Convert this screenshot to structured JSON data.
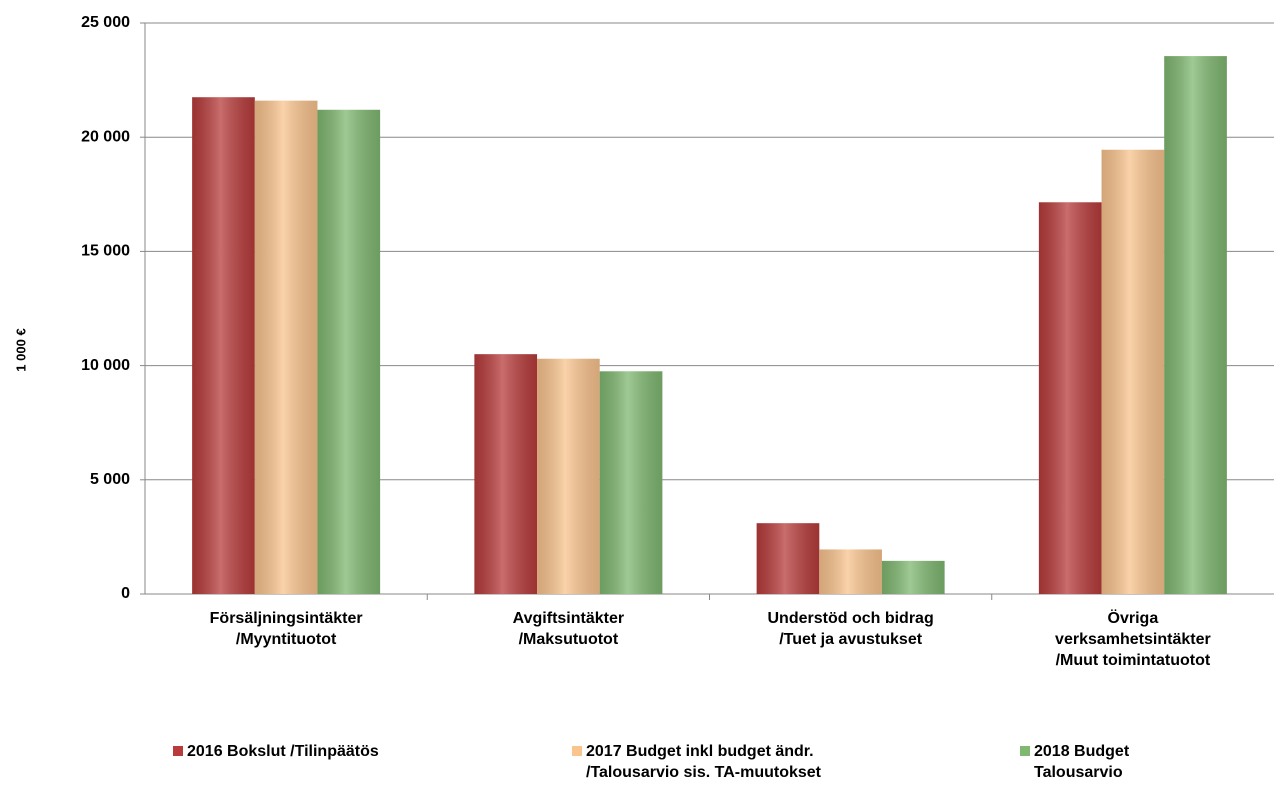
{
  "chart_data": {
    "type": "bar",
    "y_label": "1 000 €",
    "categories": [
      "Försäljningsintäkter\n/Myyntituotot",
      "Avgiftsintäkter\n/Maksutuotot",
      "Understöd och bidrag\n/Tuet ja avustukset",
      "Övriga\nverksamhetsintäkter\n/Muut toimintatuotot"
    ],
    "series": [
      {
        "name": "2016 Bokslut /Tilinpäätös",
        "color": "#b83c3c",
        "values": [
          21750,
          10500,
          3100,
          17150
        ]
      },
      {
        "name": "2017 Budget inkl budget ändr.\n/Talousarvio sis. TA-muutokset",
        "color": "#f9c48e",
        "values": [
          21600,
          10300,
          1950,
          19450
        ]
      },
      {
        "name": "2018 Budget\nTalousarvio",
        "color": "#80b871",
        "values": [
          21200,
          9750,
          1450,
          23550
        ]
      }
    ],
    "ylim": [
      0,
      25000
    ],
    "yticks": [
      0,
      {
        "value": 5000,
        "label": "5 000"
      },
      {
        "value": 10000,
        "label": "10 000"
      },
      {
        "value": 15000,
        "label": "15 000"
      },
      {
        "value": 20000,
        "label": "20 000"
      },
      {
        "value": 25000,
        "label": "25 000"
      }
    ],
    "grid": true,
    "legend": "bottom"
  }
}
